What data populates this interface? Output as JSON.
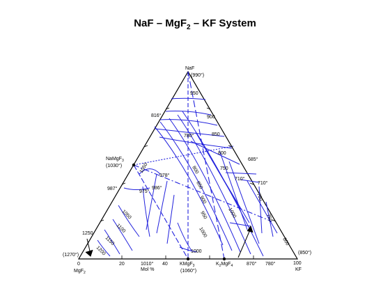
{
  "title": {
    "part1": "NaF – MgF",
    "sub": "2",
    "part2": " – KF System"
  },
  "colors": {
    "boundary": "#000000",
    "liquidus": "#2222dd"
  },
  "vertices": {
    "top": {
      "name": "NaF",
      "temp": "(990°)"
    },
    "left": {
      "name": "MgF",
      "sub": "2",
      "value": "0",
      "temp": "(1270°)"
    },
    "right": {
      "name": "KF",
      "value": "100",
      "temp": "(850°)"
    }
  },
  "base_axis": {
    "tick_20": "20",
    "tick_40": "40",
    "unit": "Mol %",
    "t1010": "1010°",
    "compound_kmgf3": "KMgF",
    "compound_kmgf3_sub": "3",
    "compound_kmgf3_temp": "(1060°)",
    "compound_k2mgf4": "K",
    "compound_k2mgf4_sub1": "2",
    "compound_k2mgf4_mid": "MgF",
    "compound_k2mgf4_sub2": "4",
    "t870": "870°",
    "t780": "780°"
  },
  "left_edge": {
    "t816": "816°",
    "namgf3": "NaMgF",
    "namgf3_sub": "3",
    "namgf3_temp": "(1030°)",
    "t987": "987°",
    "t1250": "1250"
  },
  "right_edge": {
    "t685": "685°",
    "t710": "710°"
  },
  "interior": {
    "t780": "780°",
    "t978": "978°",
    "t975": "975°",
    "t986": "986°",
    "t710": "710°"
  },
  "isotherms": [
    "950",
    "900",
    "850",
    "800",
    "750",
    "800",
    "850",
    "900",
    "950",
    "1000",
    "1050",
    "1100",
    "1150",
    "1200",
    "1050",
    "1000",
    "700",
    "750",
    "800",
    "1000"
  ]
}
